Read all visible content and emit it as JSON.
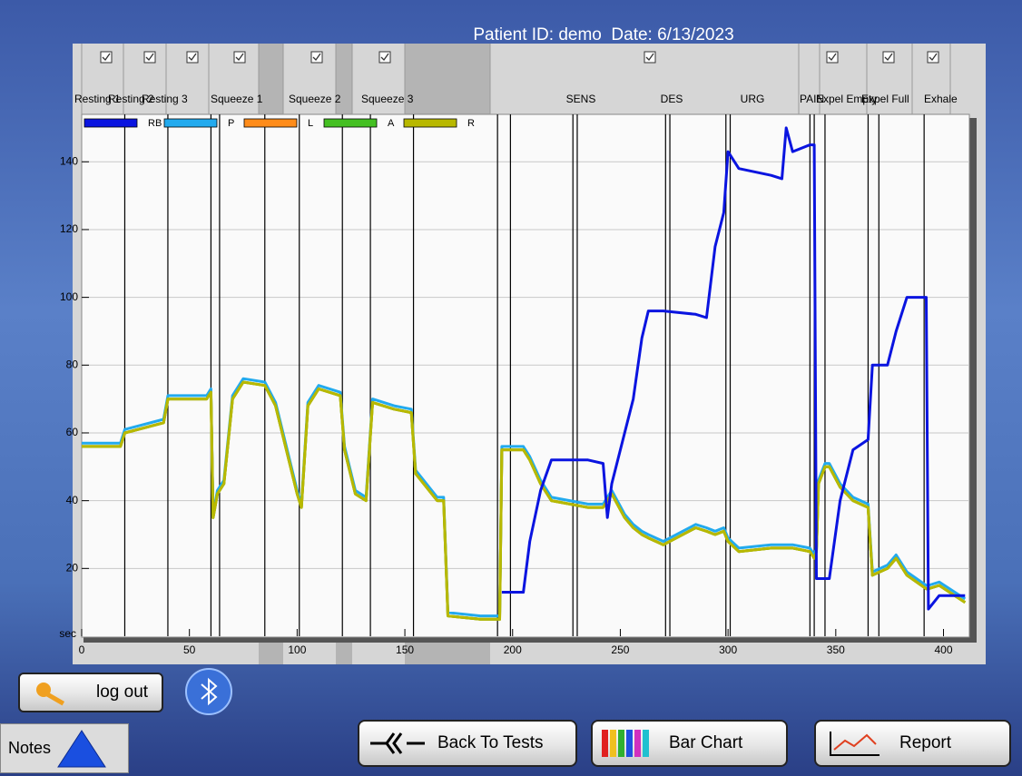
{
  "header": {
    "title": "Patient ID: demo  Date: 6/13/2023"
  },
  "columns": [
    "Resting 1",
    "Resting 2",
    "Resting 3",
    "Squeeze 1",
    "Squeeze 2",
    "Squeeze 3",
    "SENS",
    "DES",
    "URG",
    "PAIN",
    "Expel Empty",
    "Expel Full",
    "Exhale"
  ],
  "chart_data": {
    "type": "line",
    "x_label": "sec",
    "x": [
      0,
      18,
      20,
      38,
      40,
      58,
      60,
      61,
      63,
      66,
      70,
      75,
      85,
      90,
      95,
      100,
      102,
      105,
      110,
      120,
      122,
      127,
      132,
      135,
      145,
      153,
      155,
      165,
      168,
      170,
      185,
      194,
      195,
      205,
      208,
      213,
      218,
      235,
      242,
      244,
      246,
      252,
      256,
      260,
      263,
      270,
      285,
      290,
      294,
      298,
      300,
      305,
      320,
      325,
      327,
      330,
      338,
      340,
      341,
      342,
      345,
      347,
      352,
      358,
      365,
      367,
      374,
      378,
      383,
      392,
      393,
      398,
      410
    ],
    "xlim": [
      0,
      412
    ],
    "xticks": [
      0,
      50,
      100,
      150,
      200,
      250,
      300,
      350,
      400
    ],
    "ylim": [
      0,
      154
    ],
    "yticks": [
      20,
      40,
      60,
      80,
      100,
      120,
      140
    ],
    "grid": true,
    "event_lines": [
      20,
      40,
      60,
      64,
      85,
      101,
      121,
      134,
      154,
      193,
      199,
      228,
      230,
      271,
      273,
      299,
      301,
      338,
      340,
      345,
      365,
      370,
      391
    ],
    "series": [
      {
        "name": "P",
        "color": "#22aaee",
        "values": [
          57,
          57,
          61,
          64,
          71,
          71,
          73,
          36,
          43,
          46,
          71,
          76,
          75,
          69,
          56,
          43,
          39,
          69,
          74,
          72,
          56,
          43,
          41,
          70,
          68,
          67,
          49,
          41,
          41,
          7,
          6,
          6,
          56,
          56,
          53,
          46,
          41,
          39,
          39,
          41,
          43,
          36,
          33,
          31,
          30,
          28,
          33,
          32,
          31,
          32,
          29,
          26,
          27,
          27,
          27,
          27,
          26,
          24,
          26,
          46,
          51,
          51,
          45,
          41,
          39,
          19,
          21,
          24,
          19,
          15,
          15,
          16,
          11
        ]
      },
      {
        "name": "L",
        "color": "#ff8c1a",
        "values": [
          56,
          56,
          60,
          63,
          70,
          70,
          72,
          35,
          42,
          45,
          70,
          75,
          74,
          68,
          55,
          42,
          38,
          68,
          73,
          71,
          55,
          42,
          40,
          69,
          67,
          66,
          48,
          40,
          40,
          6,
          5,
          5,
          55,
          55,
          52,
          45,
          40,
          38,
          38,
          40,
          42,
          35,
          32,
          30,
          29,
          27,
          32,
          31,
          30,
          31,
          28,
          25,
          26,
          26,
          26,
          26,
          25,
          23,
          25,
          45,
          50,
          50,
          44,
          40,
          38,
          18,
          20,
          23,
          18,
          14,
          14,
          15,
          10
        ]
      },
      {
        "name": "A",
        "color": "#44c022",
        "values": [
          56,
          56,
          60,
          63,
          70,
          70,
          72,
          35,
          42,
          45,
          70,
          75,
          74,
          68,
          55,
          42,
          38,
          68,
          73,
          71,
          55,
          42,
          40,
          69,
          67,
          66,
          48,
          40,
          40,
          6,
          5,
          5,
          55,
          55,
          52,
          45,
          40,
          38,
          38,
          40,
          42,
          35,
          32,
          30,
          29,
          27,
          32,
          31,
          30,
          31,
          28,
          25,
          26,
          26,
          26,
          26,
          25,
          23,
          25,
          45,
          50,
          50,
          44,
          40,
          38,
          18,
          20,
          23,
          18,
          14,
          14,
          15,
          10
        ]
      },
      {
        "name": "R",
        "color": "#b8b800",
        "values": [
          56,
          56,
          60,
          63,
          70,
          70,
          72,
          35,
          42,
          45,
          70,
          75,
          74,
          68,
          55,
          42,
          38,
          68,
          73,
          71,
          55,
          42,
          40,
          69,
          67,
          66,
          48,
          40,
          40,
          6,
          5,
          5,
          55,
          55,
          52,
          45,
          40,
          38,
          38,
          40,
          42,
          35,
          32,
          30,
          29,
          27,
          32,
          31,
          30,
          31,
          28,
          25,
          26,
          26,
          26,
          26,
          25,
          23,
          25,
          45,
          50,
          50,
          44,
          40,
          38,
          18,
          20,
          23,
          18,
          14,
          14,
          15,
          10
        ]
      },
      {
        "name": "RB",
        "color": "#0a14e0",
        "values": [
          null,
          null,
          null,
          null,
          null,
          null,
          null,
          null,
          null,
          null,
          null,
          null,
          null,
          null,
          null,
          null,
          null,
          null,
          null,
          null,
          null,
          null,
          null,
          null,
          null,
          null,
          null,
          null,
          null,
          null,
          null,
          null,
          13,
          13,
          28,
          43,
          52,
          52,
          51,
          35,
          45,
          60,
          70,
          88,
          96,
          96,
          95,
          94,
          115,
          125,
          143,
          138,
          136,
          135,
          150,
          143,
          145,
          145,
          17,
          17,
          17,
          17,
          40,
          55,
          58,
          80,
          80,
          90,
          100,
          100,
          8,
          12,
          12
        ]
      }
    ],
    "legend_order": [
      "RB",
      "P",
      "L",
      "A",
      "R"
    ]
  },
  "buttons": {
    "logout": "log out",
    "notes": "Notes",
    "back": "Back To Tests",
    "bar_chart": "Bar Chart",
    "report": "Report"
  }
}
